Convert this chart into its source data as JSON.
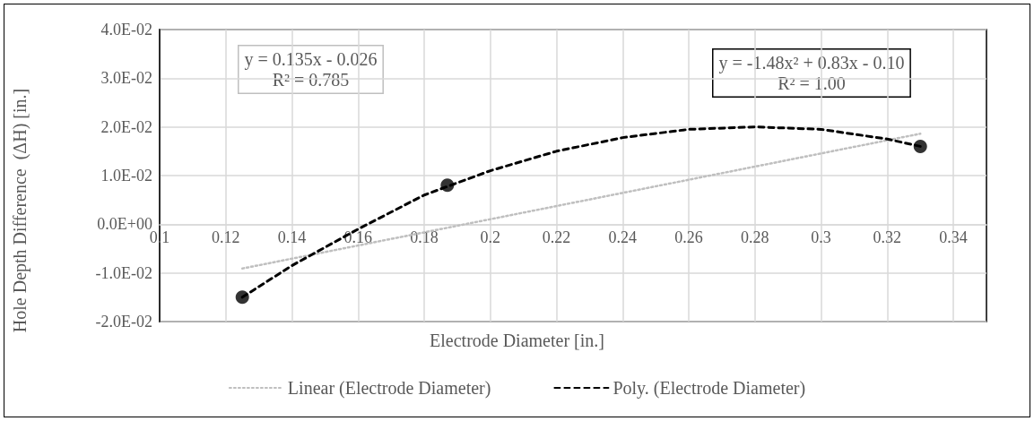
{
  "chart_data": {
    "type": "line",
    "xlabel": "Electrode Diameter [in.]",
    "ylabel": "Hole Depth Difference  (ΔH) [in.]",
    "xlim": [
      0.1,
      0.35
    ],
    "xticks": [
      0.1,
      0.12,
      0.14,
      0.16,
      0.18,
      0.2,
      0.22,
      0.24,
      0.26,
      0.28,
      0.3,
      0.32,
      0.34
    ],
    "ylim": [
      -0.02,
      0.04
    ],
    "yticks": [
      {
        "value": -0.02,
        "label": "-2.0E-02"
      },
      {
        "value": -0.01,
        "label": "-1.0E-02"
      },
      {
        "value": 0,
        "label": "0.0E+00"
      },
      {
        "value": 0.01,
        "label": "1.0E-02"
      },
      {
        "value": 0.02,
        "label": "2.0E-02"
      },
      {
        "value": 0.03,
        "label": "3.0E-02"
      },
      {
        "value": 0.04,
        "label": "4.0E-02"
      }
    ],
    "grid": true,
    "legend": "bottom",
    "annotations": [
      "y = 0.135x - 0.026",
      "R² = 0.785",
      "y = -1.48x² + 0.83x - 0.10",
      "R² = 1.00"
    ],
    "series": [
      {
        "type": "scatter",
        "marker": "circle",
        "color": "#000000",
        "x": [
          0.125,
          0.187,
          0.33
        ],
        "values": [
          -0.015,
          0.008,
          0.016
        ]
      },
      {
        "type": "line",
        "name": "Linear (Electrode Diameter)",
        "color": "#bfbfbf",
        "line_style": "dotted",
        "x": [
          0.125,
          0.33
        ],
        "values": [
          -0.0091,
          0.0186
        ]
      },
      {
        "type": "line",
        "name": "Poly. (Electrode Diameter)",
        "color": "#000000",
        "line_style": "dashed",
        "x": [
          0.125,
          0.14,
          0.16,
          0.18,
          0.2,
          0.22,
          0.24,
          0.26,
          0.28,
          0.3,
          0.32,
          0.33
        ],
        "values": [
          -0.015,
          -0.0085,
          -0.001,
          0.006,
          0.011,
          0.015,
          0.0178,
          0.0195,
          0.02,
          0.0195,
          0.0175,
          0.016
        ]
      }
    ]
  }
}
